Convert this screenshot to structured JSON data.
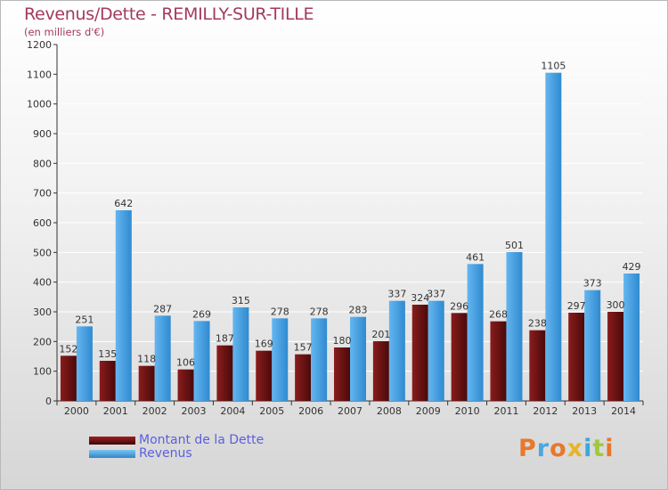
{
  "chart_data": {
    "type": "bar",
    "title": "Revenus/Dette - REMILLY-SUR-TILLE",
    "subtitle": "(en milliers d'€)",
    "categories": [
      "2000",
      "2001",
      "2002",
      "2003",
      "2004",
      "2005",
      "2006",
      "2007",
      "2008",
      "2009",
      "2010",
      "2011",
      "2012",
      "2013",
      "2014"
    ],
    "series": [
      {
        "name": "Montant de la Dette",
        "color": "#7a1717",
        "values": [
          152,
          135,
          118,
          106,
          187,
          169,
          157,
          180,
          201,
          324,
          296,
          268,
          238,
          297,
          300
        ]
      },
      {
        "name": "Revenus",
        "color": "#4ea6e4",
        "values": [
          251,
          642,
          287,
          269,
          315,
          278,
          278,
          283,
          337,
          337,
          461,
          501,
          1105,
          373,
          429
        ]
      }
    ],
    "yticks": [
      0,
      100,
      200,
      300,
      400,
      500,
      600,
      700,
      800,
      900,
      1000,
      1100,
      1200
    ],
    "ylim": [
      0,
      1200
    ],
    "xlabel": "",
    "ylabel": "",
    "grid": true,
    "legend_position": "bottom-left"
  },
  "logo": {
    "text": "Proxiti",
    "colors": [
      "#e8782a",
      "#4ba7df",
      "#e8782a",
      "#e8b428",
      "#3aa8d8",
      "#9fc93c",
      "#e8782a"
    ]
  }
}
